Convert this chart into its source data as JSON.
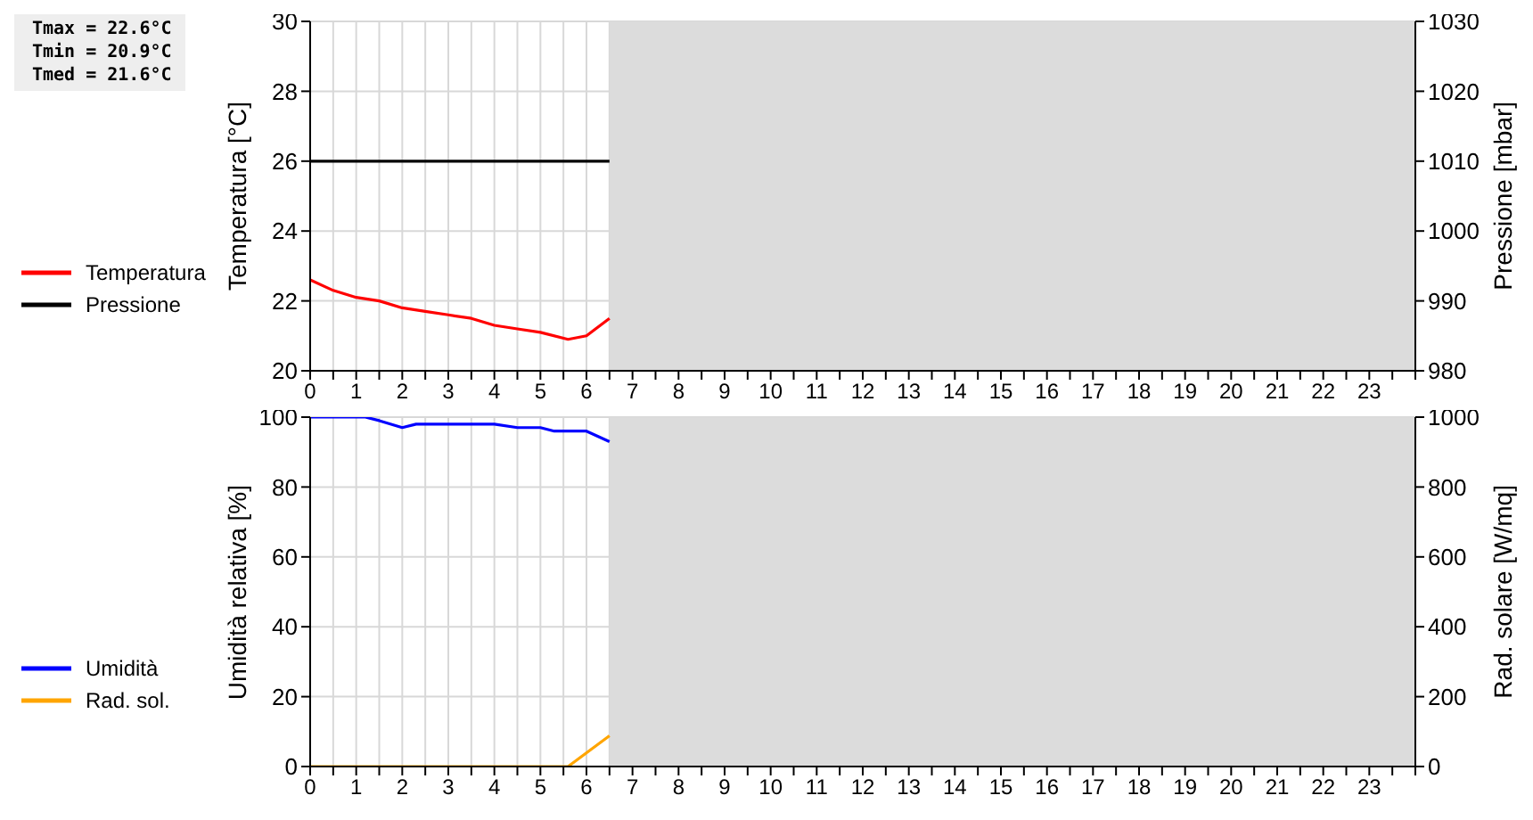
{
  "chart_data": [
    {
      "type": "line",
      "xlim": [
        0,
        24
      ],
      "xticks": [
        0,
        {
          "value": 0.5,
          "label": null
        },
        1,
        {
          "value": 1.5,
          "label": null
        },
        2,
        {
          "value": 2.5,
          "label": null
        },
        3,
        {
          "value": 3.5,
          "label": null
        },
        4,
        {
          "value": 4.5,
          "label": null
        },
        5,
        {
          "value": 5.5,
          "label": null
        },
        6,
        {
          "value": 6.5,
          "label": null
        },
        7,
        {
          "value": 7.5,
          "label": null
        },
        8,
        {
          "value": 8.5,
          "label": null
        },
        9,
        {
          "value": 9.5,
          "label": null
        },
        10,
        {
          "value": 10.5,
          "label": null
        },
        11,
        {
          "value": 11.5,
          "label": null
        },
        12,
        {
          "value": 12.5,
          "label": null
        },
        13,
        {
          "value": 13.5,
          "label": null
        },
        14,
        {
          "value": 14.5,
          "label": null
        },
        15,
        {
          "value": 15.5,
          "label": null
        },
        16,
        {
          "value": 16.5,
          "label": null
        },
        17,
        {
          "value": 17.5,
          "label": null
        },
        18,
        {
          "value": 18.5,
          "label": null
        },
        19,
        {
          "value": 19.5,
          "label": null
        },
        20,
        {
          "value": 20.5,
          "label": null
        },
        21,
        {
          "value": 21.5,
          "label": null
        },
        22,
        {
          "value": 22.5,
          "label": null
        },
        23,
        {
          "value": 23.5,
          "label": null
        },
        {
          "value": 24,
          "label": null
        }
      ],
      "ylabel": "Temperatura [°C]",
      "ylim": [
        20,
        30
      ],
      "yticks": [
        20,
        22,
        24,
        26,
        28,
        30
      ],
      "y2label": "Pressione [mbar]",
      "y2lim": [
        980,
        1030
      ],
      "y2ticks": [
        980,
        990,
        1000,
        1010,
        1020,
        1030
      ],
      "series": [
        {
          "name": "Temperatura",
          "color": "#ff0000",
          "x": [
            0,
            0.5,
            1,
            1.5,
            2,
            2.5,
            3,
            3.5,
            4,
            4.5,
            5,
            5.6,
            6,
            6.5
          ],
          "values": [
            22.6,
            22.3,
            22.1,
            22.0,
            21.8,
            21.7,
            21.6,
            21.5,
            21.3,
            21.2,
            21.1,
            20.9,
            21.0,
            21.5
          ]
        },
        {
          "name": "Pressione",
          "color": "#000000",
          "axis": "y2",
          "x": [
            0,
            6.5
          ],
          "values": [
            1010,
            1010
          ]
        }
      ],
      "bands": [
        {
          "axis": "x",
          "from": 6.5,
          "to": 24,
          "color": "#dcdcdc"
        }
      ],
      "annotations": [
        "Tmax = 22.6°C",
        "Tmin = 20.9°C",
        "Tmed = 21.6°C"
      ],
      "grid": true,
      "legend": "left"
    },
    {
      "type": "line",
      "xlim": [
        0,
        24
      ],
      "xticks": [
        0,
        {
          "value": 0.5,
          "label": null
        },
        1,
        {
          "value": 1.5,
          "label": null
        },
        2,
        {
          "value": 2.5,
          "label": null
        },
        3,
        {
          "value": 3.5,
          "label": null
        },
        4,
        {
          "value": 4.5,
          "label": null
        },
        5,
        {
          "value": 5.5,
          "label": null
        },
        6,
        {
          "value": 6.5,
          "label": null
        },
        7,
        {
          "value": 7.5,
          "label": null
        },
        8,
        {
          "value": 8.5,
          "label": null
        },
        9,
        {
          "value": 9.5,
          "label": null
        },
        10,
        {
          "value": 10.5,
          "label": null
        },
        11,
        {
          "value": 11.5,
          "label": null
        },
        12,
        {
          "value": 12.5,
          "label": null
        },
        13,
        {
          "value": 13.5,
          "label": null
        },
        14,
        {
          "value": 14.5,
          "label": null
        },
        15,
        {
          "value": 15.5,
          "label": null
        },
        16,
        {
          "value": 16.5,
          "label": null
        },
        17,
        {
          "value": 17.5,
          "label": null
        },
        18,
        {
          "value": 18.5,
          "label": null
        },
        19,
        {
          "value": 19.5,
          "label": null
        },
        20,
        {
          "value": 20.5,
          "label": null
        },
        21,
        {
          "value": 21.5,
          "label": null
        },
        22,
        {
          "value": 22.5,
          "label": null
        },
        23,
        {
          "value": 23.5,
          "label": null
        },
        {
          "value": 24,
          "label": null
        }
      ],
      "ylabel": "Umidità relativa [%]",
      "ylim": [
        0,
        100
      ],
      "yticks": [
        0,
        20,
        40,
        60,
        80,
        100
      ],
      "y2label": "Rad. solare [W/mq]",
      "y2lim": [
        0,
        1000
      ],
      "y2ticks": [
        0,
        200,
        400,
        600,
        800,
        1000
      ],
      "series": [
        {
          "name": "Umidità",
          "color": "#0000ff",
          "x": [
            0,
            1.2,
            1.5,
            2,
            2.3,
            3,
            4,
            4.5,
            5,
            5.3,
            6,
            6.5
          ],
          "values": [
            100,
            100,
            99,
            97,
            98,
            98,
            98,
            97,
            97,
            96,
            96,
            93
          ]
        },
        {
          "name": "Rad. sol.",
          "color": "#ffa500",
          "axis": "y2",
          "x": [
            0,
            5.6,
            6.5
          ],
          "values": [
            0,
            0,
            88
          ]
        }
      ],
      "bands": [
        {
          "axis": "x",
          "from": 6.5,
          "to": 24,
          "color": "#dcdcdc"
        }
      ],
      "grid": true,
      "legend": "left"
    }
  ]
}
